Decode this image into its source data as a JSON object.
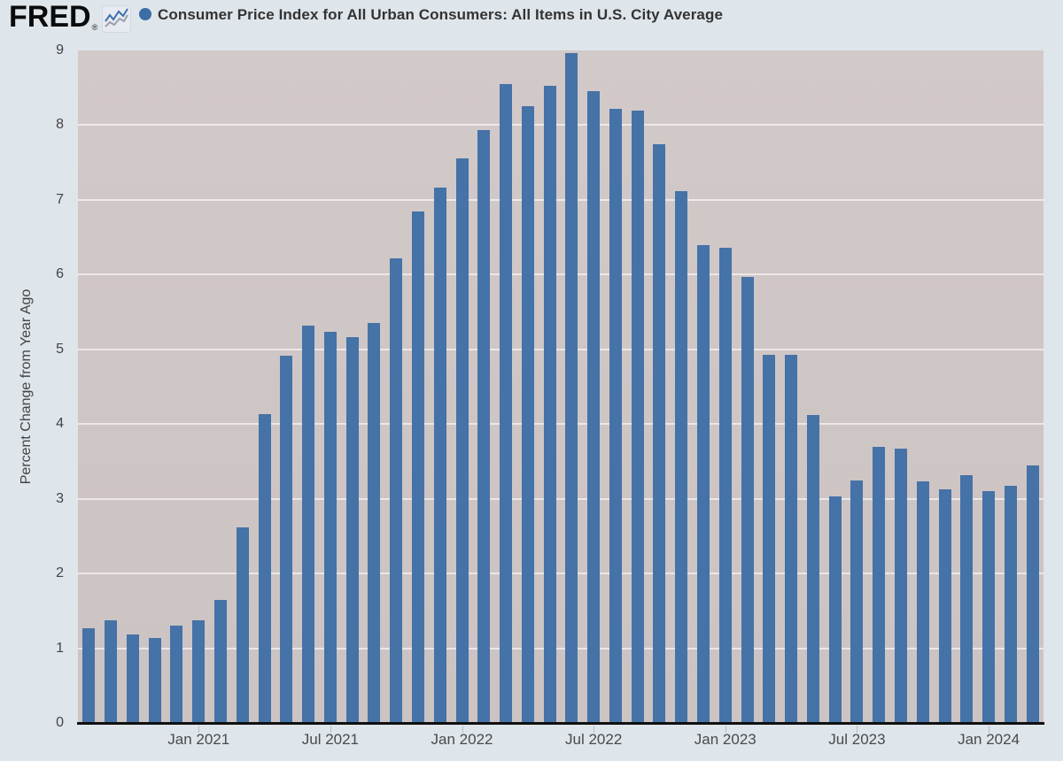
{
  "header": {
    "logo_text": "FRED",
    "registered_mark": "®",
    "title": "Consumer Price Index for All Urban Consumers: All Items in U.S. City Average",
    "series_marker_color": "#3b6ea5"
  },
  "chart_data": {
    "type": "bar",
    "title": "Consumer Price Index for All Urban Consumers: All Items in U.S. City Average",
    "xlabel": "",
    "ylabel": "Percent Change from Year Ago",
    "ylim": [
      0,
      9
    ],
    "yticks": [
      0,
      1,
      2,
      3,
      4,
      5,
      6,
      7,
      8,
      9
    ],
    "grid": true,
    "legend_position": "none",
    "bar_color": "#4572a7",
    "plot_bg_color": "#cec5c5",
    "page_bg_color": "#dee5eb",
    "gridline_color": "#e9e5e5",
    "x": [
      "Aug 2020",
      "Sep 2020",
      "Oct 2020",
      "Nov 2020",
      "Dec 2020",
      "Jan 2021",
      "Feb 2021",
      "Mar 2021",
      "Apr 2021",
      "May 2021",
      "Jun 2021",
      "Jul 2021",
      "Aug 2021",
      "Sep 2021",
      "Oct 2021",
      "Nov 2021",
      "Dec 2021",
      "Jan 2022",
      "Feb 2022",
      "Mar 2022",
      "Apr 2022",
      "May 2022",
      "Jun 2022",
      "Jul 2022",
      "Aug 2022",
      "Sep 2022",
      "Oct 2022",
      "Nov 2022",
      "Dec 2022",
      "Jan 2023",
      "Feb 2023",
      "Mar 2023",
      "Apr 2023",
      "May 2023",
      "Jun 2023",
      "Jul 2023",
      "Aug 2023",
      "Sep 2023",
      "Oct 2023",
      "Nov 2023",
      "Dec 2023",
      "Jan 2024",
      "Feb 2024",
      "Mar 2024"
    ],
    "values": [
      1.27,
      1.37,
      1.18,
      1.14,
      1.3,
      1.37,
      1.65,
      2.62,
      4.13,
      4.92,
      5.32,
      5.24,
      5.16,
      5.35,
      6.22,
      6.84,
      7.16,
      7.55,
      7.94,
      8.55,
      8.25,
      8.53,
      8.96,
      8.45,
      8.22,
      8.2,
      7.74,
      7.12,
      6.4,
      6.36,
      5.97,
      4.93,
      4.93,
      4.12,
      3.03,
      3.25,
      3.7,
      3.67,
      3.23,
      3.13,
      3.31,
      3.1,
      3.17,
      3.45
    ],
    "xtick_labels": [
      "Jan 2021",
      "Jul 2021",
      "Jan 2022",
      "Jul 2022",
      "Jan 2023",
      "Jul 2023",
      "Jan 2024"
    ],
    "xtick_indices": [
      5,
      11,
      17,
      23,
      29,
      35,
      41
    ]
  }
}
